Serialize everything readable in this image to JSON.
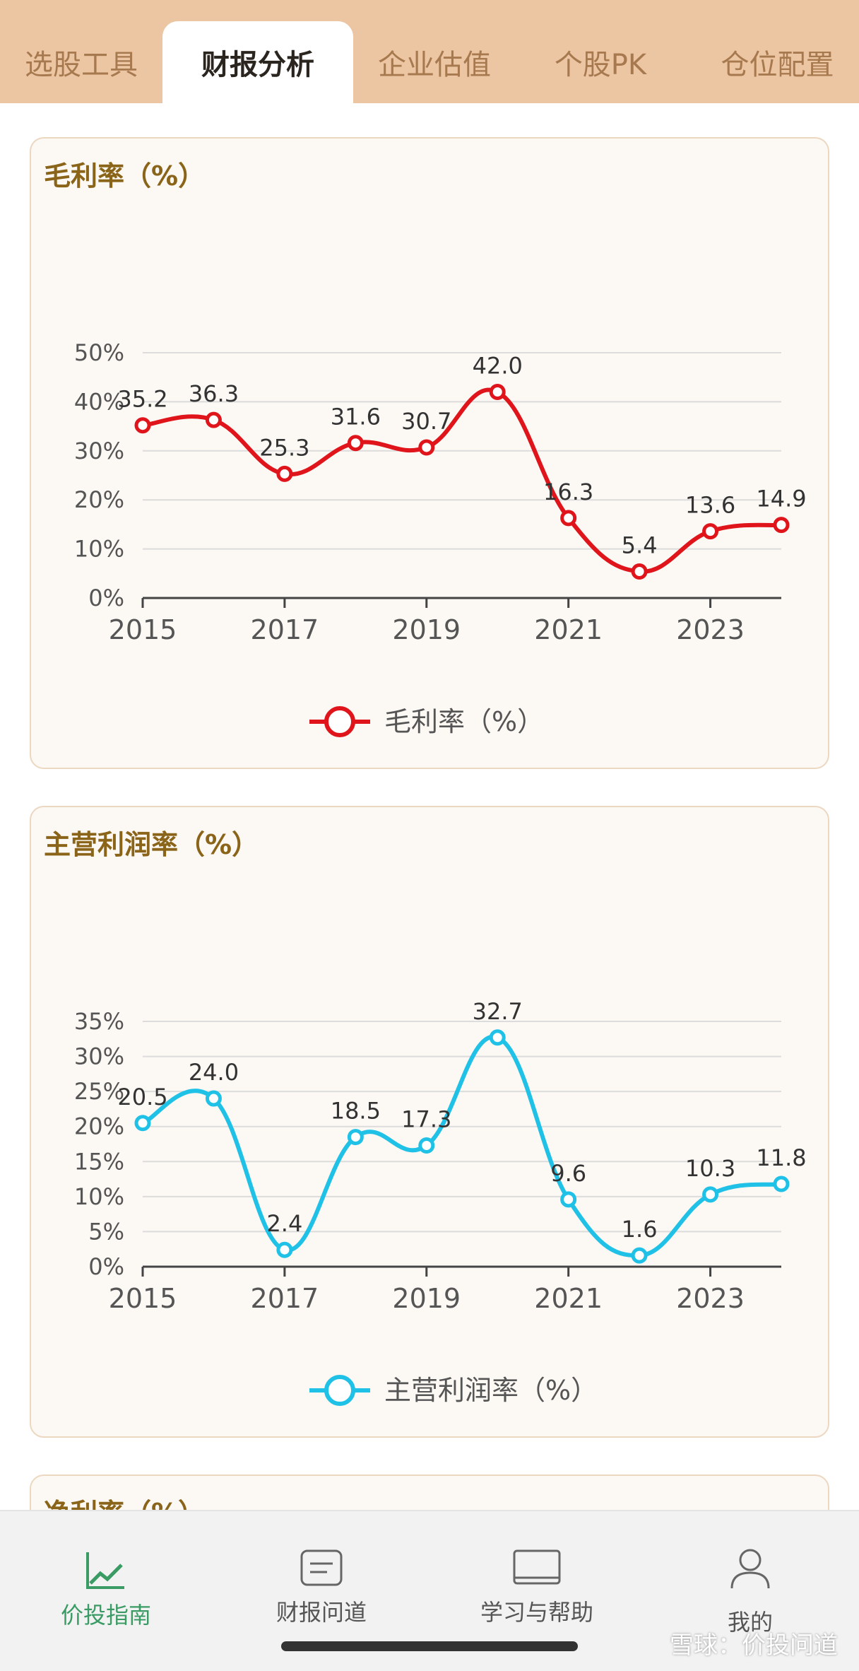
{
  "tabs": [
    {
      "label": "选股工具",
      "active": false
    },
    {
      "label": "财报分析",
      "active": true
    },
    {
      "label": "企业估值",
      "active": false
    },
    {
      "label": "个股PK",
      "active": false
    },
    {
      "label": "仓位配置",
      "active": false
    }
  ],
  "cards": [
    {
      "title": "毛利率（%）"
    },
    {
      "title": "主营利润率（%）"
    },
    {
      "title": "净利率（%）"
    }
  ],
  "chart_data": [
    {
      "type": "line",
      "title": "毛利率（%）",
      "x": [
        2015,
        2016,
        2017,
        2018,
        2019,
        2020,
        2021,
        2022,
        2023,
        2024
      ],
      "x_tick_labels": [
        "2015",
        "2017",
        "2019",
        "2021",
        "2023"
      ],
      "y_tick_labels": [
        "0%",
        "10%",
        "20%",
        "30%",
        "40%",
        "50%"
      ],
      "ylim": [
        0,
        50
      ],
      "series": [
        {
          "name": "毛利率（%）",
          "color": "#e0151b",
          "values": [
            35.2,
            36.3,
            25.3,
            31.6,
            30.7,
            42.0,
            16.3,
            5.4,
            13.6,
            14.9
          ],
          "labels": [
            "35.2",
            "36.3",
            "25.3",
            "31.6",
            "30.7",
            "42.0",
            "16.3",
            "5.4",
            "13.6",
            "14.9"
          ]
        }
      ],
      "legend_placement": "bottom-center",
      "grid": true
    },
    {
      "type": "line",
      "title": "主营利润率（%）",
      "x": [
        2015,
        2016,
        2017,
        2018,
        2019,
        2020,
        2021,
        2022,
        2023,
        2024
      ],
      "x_tick_labels": [
        "2015",
        "2017",
        "2019",
        "2021",
        "2023"
      ],
      "y_tick_labels": [
        "0%",
        "5%",
        "10%",
        "15%",
        "20%",
        "25%",
        "30%",
        "35%"
      ],
      "ylim": [
        0,
        35
      ],
      "series": [
        {
          "name": "主营利润率（%）",
          "color": "#1fc1e6",
          "values": [
            20.5,
            24.0,
            2.4,
            18.5,
            17.3,
            32.7,
            9.6,
            1.6,
            10.3,
            11.8
          ],
          "labels": [
            "20.5",
            "24.0",
            "2.4",
            "18.5",
            "17.3",
            "32.7",
            "9.6",
            "1.6",
            "10.3",
            "11.8"
          ]
        }
      ],
      "legend_placement": "bottom-center",
      "grid": true
    }
  ],
  "bottom_nav": [
    {
      "label": "价投指南",
      "icon": "chart-trend-icon",
      "active": true
    },
    {
      "label": "财报问道",
      "icon": "document-icon",
      "active": false
    },
    {
      "label": "学习与帮助",
      "icon": "book-icon",
      "active": false
    },
    {
      "label": "我的",
      "icon": "user-icon",
      "active": false
    }
  ],
  "watermark": "雪球：价投问道",
  "colors": {
    "tab_bg": "#ecc5a2",
    "accent_green": "#3a9b64",
    "title_brown": "#8a6418"
  }
}
